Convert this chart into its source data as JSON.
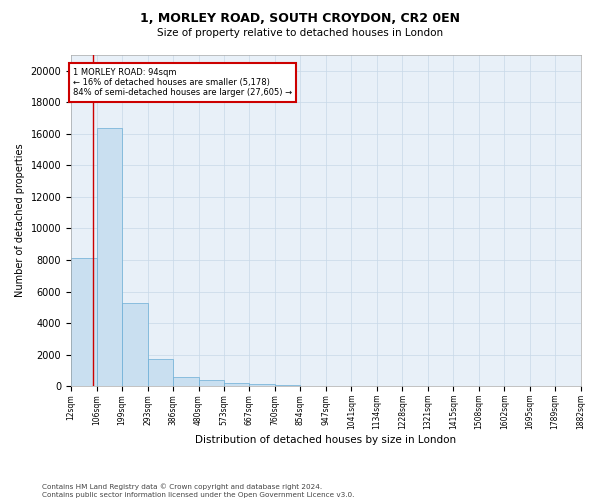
{
  "title1": "1, MORLEY ROAD, SOUTH CROYDON, CR2 0EN",
  "title2": "Size of property relative to detached houses in London",
  "xlabel": "Distribution of detached houses by size in London",
  "ylabel": "Number of detached properties",
  "footnote": "Contains HM Land Registry data © Crown copyright and database right 2024.\nContains public sector information licensed under the Open Government Licence v3.0.",
  "bar_color": "#c9dff0",
  "bar_edge_color": "#6aadd5",
  "grid_color": "#c8d8e8",
  "background_color": "#e8f0f8",
  "annotation_text": "1 MORLEY ROAD: 94sqm\n← 16% of detached houses are smaller (5,178)\n84% of semi-detached houses are larger (27,605) →",
  "property_line_color": "#cc0000",
  "annotation_box_edge": "#cc0000",
  "ylim": [
    0,
    21000
  ],
  "yticks": [
    0,
    2000,
    4000,
    6000,
    8000,
    10000,
    12000,
    14000,
    16000,
    18000,
    20000
  ],
  "bin_edges": [
    12,
    106,
    199,
    293,
    386,
    480,
    573,
    667,
    760,
    854,
    947,
    1041,
    1134,
    1228,
    1321,
    1415,
    1508,
    1602,
    1695,
    1789,
    1882
  ],
  "bin_labels": [
    "12sqm",
    "106sqm",
    "199sqm",
    "293sqm",
    "386sqm",
    "480sqm",
    "573sqm",
    "667sqm",
    "760sqm",
    "854sqm",
    "947sqm",
    "1041sqm",
    "1134sqm",
    "1228sqm",
    "1321sqm",
    "1415sqm",
    "1508sqm",
    "1602sqm",
    "1695sqm",
    "1789sqm",
    "1882sqm"
  ],
  "bar_heights": [
    8100,
    16400,
    5300,
    1750,
    580,
    380,
    180,
    130,
    80,
    0,
    0,
    0,
    0,
    0,
    0,
    0,
    0,
    0,
    0,
    0
  ],
  "property_bin_index": 0
}
